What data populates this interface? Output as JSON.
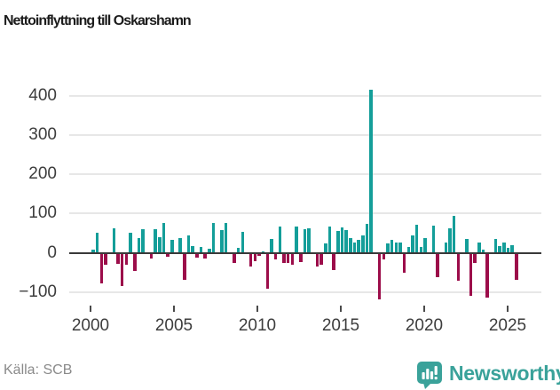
{
  "header": {
    "title": "Nettoinflyttning till Oskarshamn"
  },
  "footer": {
    "source": "Källa: SCB",
    "brand": {
      "name": "Newsworthy",
      "logo_icon": "newsworthy-bar-chart-badge-icon"
    }
  },
  "colors": {
    "positive_bar": "#149e99",
    "negative_bar": "#9c0d4a",
    "zero_line": "#3a3a3a",
    "gridline": "#e7e7e7",
    "axis_text": "#3d3d3d",
    "brand_teal": "#3aa29a",
    "source_text": "#8a8a8a",
    "title_text": "#1c1c1c"
  },
  "chart_data": {
    "type": "bar",
    "title": "Nettoinflyttning till Oskarshamn",
    "xlabel": "",
    "ylabel": "",
    "frequency": "quarterly",
    "start_period": "2000-Q1",
    "end_period": "2025-Q3",
    "x_tick_labels": [
      "2000",
      "2005",
      "2010",
      "2015",
      "2020",
      "2025"
    ],
    "y_tick_labels": [
      "400",
      "300",
      "200",
      "100",
      "0",
      "−100"
    ],
    "y_ticks": [
      400,
      300,
      200,
      100,
      0,
      -100
    ],
    "ylim": [
      -140,
      445
    ],
    "grid": "horizontal",
    "legend": "none",
    "values": [
      7,
      52,
      -78,
      -30,
      0,
      62,
      -28,
      -84,
      -31,
      51,
      -46,
      37,
      60,
      0,
      -15,
      61,
      39,
      77,
      -10,
      33,
      0,
      38,
      -70,
      45,
      17,
      -12,
      15,
      -15,
      11,
      75,
      0,
      57,
      75,
      0,
      -27,
      12,
      53,
      0,
      -36,
      -22,
      -8,
      4,
      -91,
      36,
      -18,
      66,
      -27,
      -27,
      -30,
      68,
      -24,
      60,
      63,
      0,
      -35,
      -30,
      23,
      68,
      -45,
      55,
      65,
      57,
      38,
      27,
      33,
      45,
      74,
      415,
      0,
      -120,
      -16,
      23,
      33,
      27,
      27,
      -52,
      14,
      45,
      72,
      14,
      38,
      0,
      70,
      -63,
      0,
      25,
      63,
      95,
      -72,
      0,
      36,
      -110,
      -27,
      25,
      8,
      -114,
      0,
      36,
      18,
      27,
      12,
      20,
      -69
    ]
  }
}
